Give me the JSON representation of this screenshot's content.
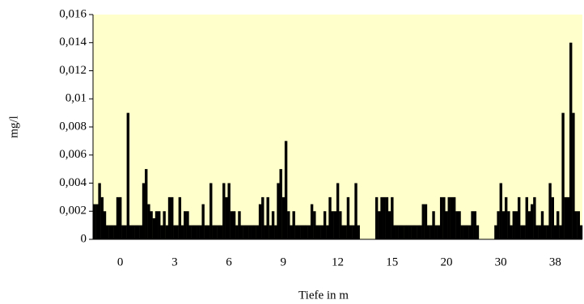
{
  "chart_data": {
    "type": "bar",
    "y_label": "mg/l",
    "x_label": "Tiefe in m",
    "color": "#000000",
    "background": "#ffffcc",
    "ylim": [
      0,
      0.016
    ],
    "yticks": [
      0,
      {
        "value": 0.002,
        "label": "0,002"
      },
      {
        "value": 0.004,
        "label": "0,004"
      },
      {
        "value": 0.006,
        "label": "0,006"
      },
      {
        "value": 0.008,
        "label": "0,008"
      },
      {
        "value": 0.01,
        "label": "0,01"
      },
      {
        "value": 0.012,
        "label": "0,012"
      },
      {
        "value": 0.014,
        "label": "0,014"
      },
      {
        "value": 0.016,
        "label": "0,016"
      }
    ],
    "categories": [
      null,
      null,
      null,
      null,
      null,
      null,
      null,
      null,
      null,
      null,
      "0",
      null,
      null,
      null,
      null,
      null,
      null,
      null,
      null,
      null,
      null,
      null,
      null,
      null,
      null,
      null,
      null,
      null,
      null,
      null,
      null,
      "3",
      null,
      null,
      null,
      null,
      null,
      null,
      null,
      null,
      null,
      null,
      null,
      null,
      null,
      null,
      null,
      null,
      null,
      null,
      null,
      null,
      "6",
      null,
      null,
      null,
      null,
      null,
      null,
      null,
      null,
      null,
      null,
      null,
      null,
      null,
      null,
      null,
      null,
      null,
      null,
      null,
      null,
      "9",
      null,
      null,
      null,
      null,
      null,
      null,
      null,
      null,
      null,
      null,
      null,
      null,
      null,
      null,
      null,
      null,
      null,
      null,
      null,
      null,
      "12",
      null,
      null,
      null,
      null,
      null,
      null,
      null,
      null,
      null,
      null,
      null,
      null,
      null,
      null,
      null,
      null,
      null,
      null,
      null,
      null,
      "15",
      null,
      null,
      null,
      null,
      null,
      null,
      null,
      null,
      null,
      null,
      null,
      null,
      null,
      null,
      null,
      null,
      null,
      null,
      null,
      null,
      "20",
      null,
      null,
      null,
      null,
      null,
      null,
      null,
      null,
      null,
      null,
      null,
      null,
      null,
      null,
      null,
      null,
      null,
      null,
      null,
      null,
      "30",
      null,
      null,
      null,
      null,
      null,
      null,
      null,
      null,
      null,
      null,
      null,
      null,
      null,
      null,
      null,
      null,
      null,
      null,
      null,
      null,
      "38",
      null,
      null,
      null,
      null,
      null,
      null,
      null,
      null,
      null,
      null
    ],
    "values": [
      0.0025,
      0.0025,
      0.004,
      0.003,
      0.002,
      0.001,
      0.001,
      0.001,
      0.001,
      0.003,
      0.003,
      0.001,
      0.001,
      0.009,
      0.001,
      0.001,
      0.001,
      0.001,
      0.001,
      0.004,
      0.005,
      0.0025,
      0.002,
      0.0015,
      0.002,
      0.002,
      0.001,
      0.002,
      0.001,
      0.003,
      0.003,
      0.001,
      0.001,
      0.003,
      0.001,
      0.002,
      0.002,
      0.001,
      0.001,
      0.001,
      0.001,
      0.001,
      0.0025,
      0.001,
      0.001,
      0.004,
      0.001,
      0.001,
      0.001,
      0.001,
      0.004,
      0.003,
      0.004,
      0.002,
      0.002,
      0.001,
      0.002,
      0.001,
      0.001,
      0.001,
      0.001,
      0.001,
      0.001,
      0.001,
      0.0025,
      0.003,
      0.001,
      0.003,
      0.001,
      0.002,
      0.001,
      0.004,
      0.005,
      0.003,
      0.007,
      0.002,
      0.001,
      0.002,
      0.001,
      0.001,
      0.001,
      0.001,
      0.001,
      0.001,
      0.0025,
      0.002,
      0.001,
      0.001,
      0.001,
      0.002,
      0.001,
      0.003,
      0.002,
      0.002,
      0.004,
      0.002,
      0.001,
      0.001,
      0.003,
      0.001,
      0.001,
      0.004,
      0.001,
      0,
      0,
      0,
      0,
      0,
      0,
      0.003,
      0.002,
      0.003,
      0.003,
      0.003,
      0.002,
      0.003,
      0.001,
      0.001,
      0.001,
      0.001,
      0.001,
      0.001,
      0.001,
      0.001,
      0.001,
      0.001,
      0.001,
      0.0025,
      0.0025,
      0.001,
      0.001,
      0.002,
      0.001,
      0.001,
      0.003,
      0.003,
      0.002,
      0.003,
      0.003,
      0.003,
      0.002,
      0.002,
      0.001,
      0.001,
      0.001,
      0.001,
      0.002,
      0.002,
      0.001,
      0,
      0,
      0,
      0,
      0,
      0,
      0.001,
      0.002,
      0.004,
      0.002,
      0.003,
      0.002,
      0.001,
      0.002,
      0.002,
      0.003,
      0.001,
      0.001,
      0.003,
      0.002,
      0.0025,
      0.003,
      0.001,
      0.001,
      0.002,
      0.001,
      0.001,
      0.004,
      0.003,
      0.001,
      0.002,
      0.001,
      0.009,
      0.003,
      0.003,
      0.014,
      0.009,
      0.002,
      0.002,
      0.001
    ]
  }
}
